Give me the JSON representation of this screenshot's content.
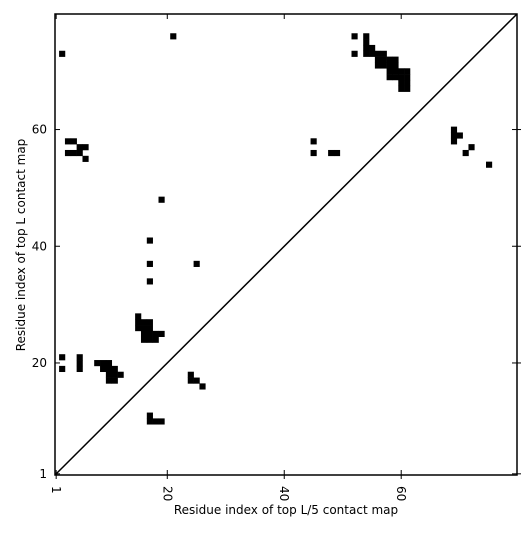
{
  "chart_data": {
    "type": "scatter",
    "xlabel": "Residue index of top L/5 contact map",
    "ylabel": "Residue index of top L contact map",
    "xlim": [
      0.8,
      79.8
    ],
    "ylim": [
      0.8,
      79.8
    ],
    "xticks": [
      1,
      20,
      40,
      60
    ],
    "yticks": [
      1,
      20,
      40,
      60
    ],
    "marker": "square",
    "series": [
      {
        "color": "#000000",
        "x": [
          2,
          21,
          52,
          52,
          54,
          54,
          54,
          54,
          55,
          55,
          56,
          56,
          56,
          57,
          57,
          57,
          58,
          58,
          58,
          58,
          59,
          59,
          59,
          59,
          60,
          60,
          60,
          60,
          61,
          61,
          61,
          61,
          45,
          45,
          48,
          49,
          69,
          69,
          70,
          69,
          71,
          72,
          75,
          3,
          4,
          3,
          4,
          5,
          5,
          6,
          6,
          19,
          17,
          17,
          17,
          25,
          2,
          2,
          5,
          5,
          5,
          8,
          9,
          10,
          9,
          10,
          11,
          10,
          11,
          12,
          10,
          11,
          15,
          15,
          16,
          17,
          15,
          16,
          17,
          16,
          17,
          18,
          19,
          16,
          17,
          18,
          24,
          24,
          25,
          26,
          17,
          17,
          18,
          19
        ],
        "y": [
          73,
          76,
          76,
          73,
          76,
          75,
          74,
          73,
          74,
          73,
          73,
          72,
          71,
          73,
          72,
          71,
          72,
          71,
          70,
          69,
          72,
          71,
          70,
          69,
          70,
          69,
          68,
          67,
          70,
          69,
          68,
          67,
          58,
          56,
          56,
          56,
          60,
          59,
          59,
          58,
          56,
          57,
          54,
          58,
          58,
          56,
          56,
          56,
          57,
          57,
          55,
          48,
          41,
          37,
          34,
          37,
          21,
          19,
          21,
          20,
          19,
          20,
          20,
          20,
          19,
          19,
          19,
          18,
          18,
          18,
          17,
          17,
          28,
          27,
          27,
          27,
          26,
          26,
          26,
          25,
          25,
          25,
          25,
          24,
          24,
          24,
          18,
          17,
          17,
          16,
          11,
          10,
          10,
          10
        ]
      }
    ]
  }
}
